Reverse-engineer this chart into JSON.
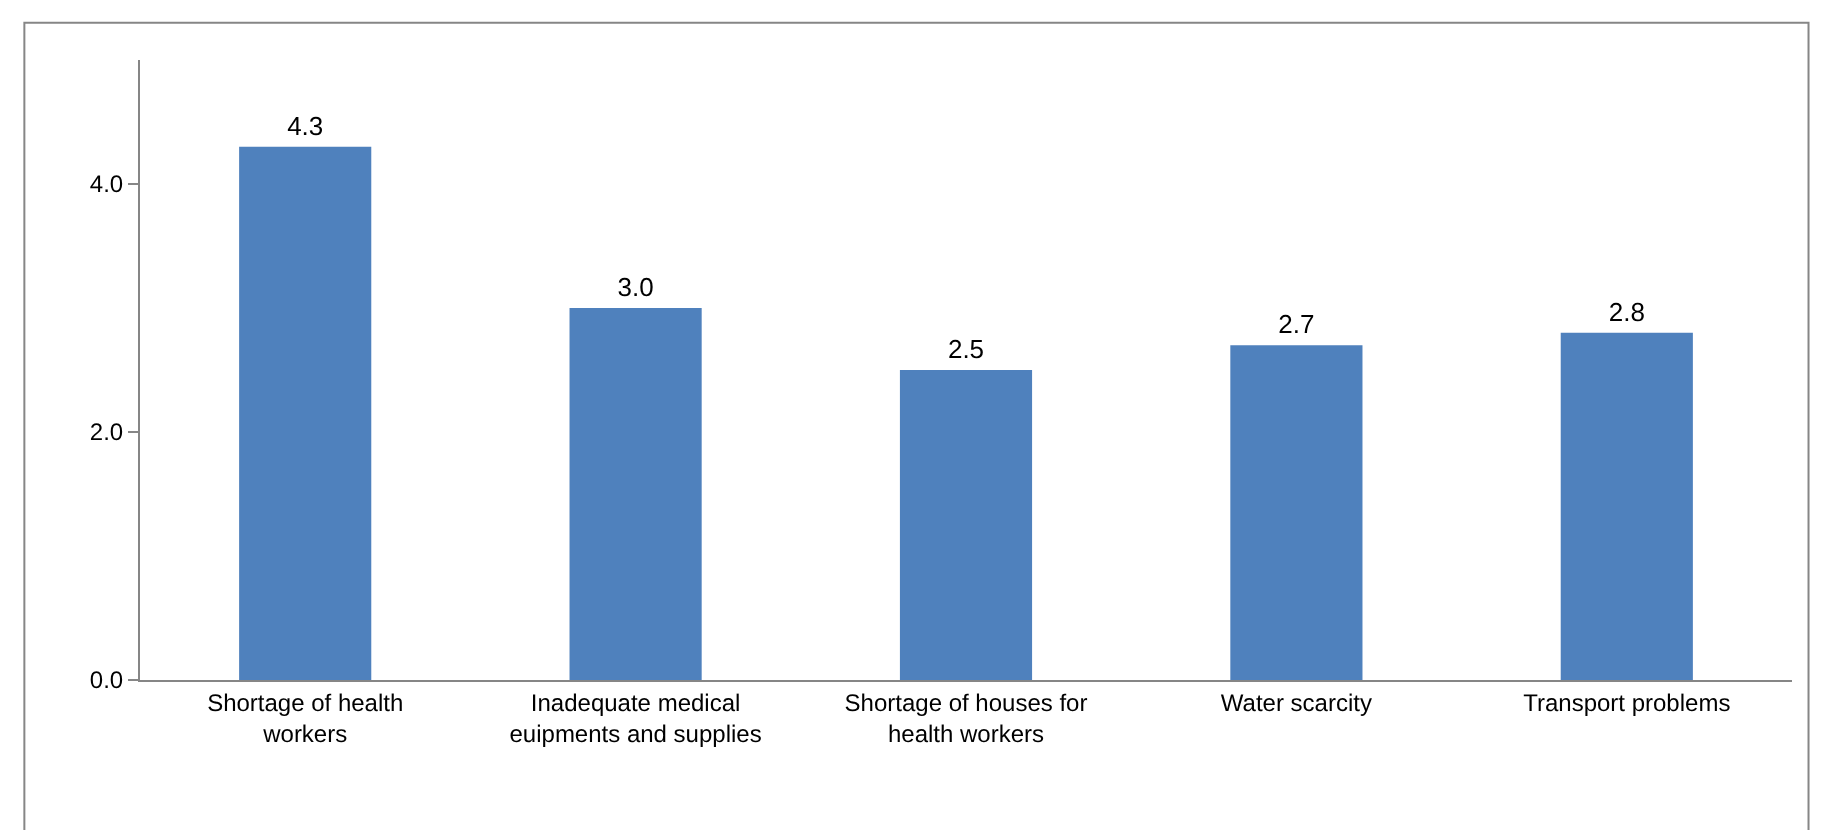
{
  "chart_data": {
    "type": "bar",
    "categories": [
      "Shortage of health workers",
      "Inadequate medical euipments and supplies",
      "Shortage of houses for health workers",
      "Water scarcity",
      "Transport problems"
    ],
    "values": [
      4.3,
      3.0,
      2.5,
      2.7,
      2.8
    ],
    "color": "#4f81bd",
    "ylim": [
      0,
      5
    ],
    "yticks": [
      {
        "value": 0,
        "label": "0.0"
      },
      {
        "value": 2,
        "label": "2.0"
      },
      {
        "value": 4,
        "label": "4.0"
      }
    ],
    "value_labels": [
      "4.3",
      "3.0",
      "2.5",
      "2.7",
      "2.8"
    ]
  }
}
